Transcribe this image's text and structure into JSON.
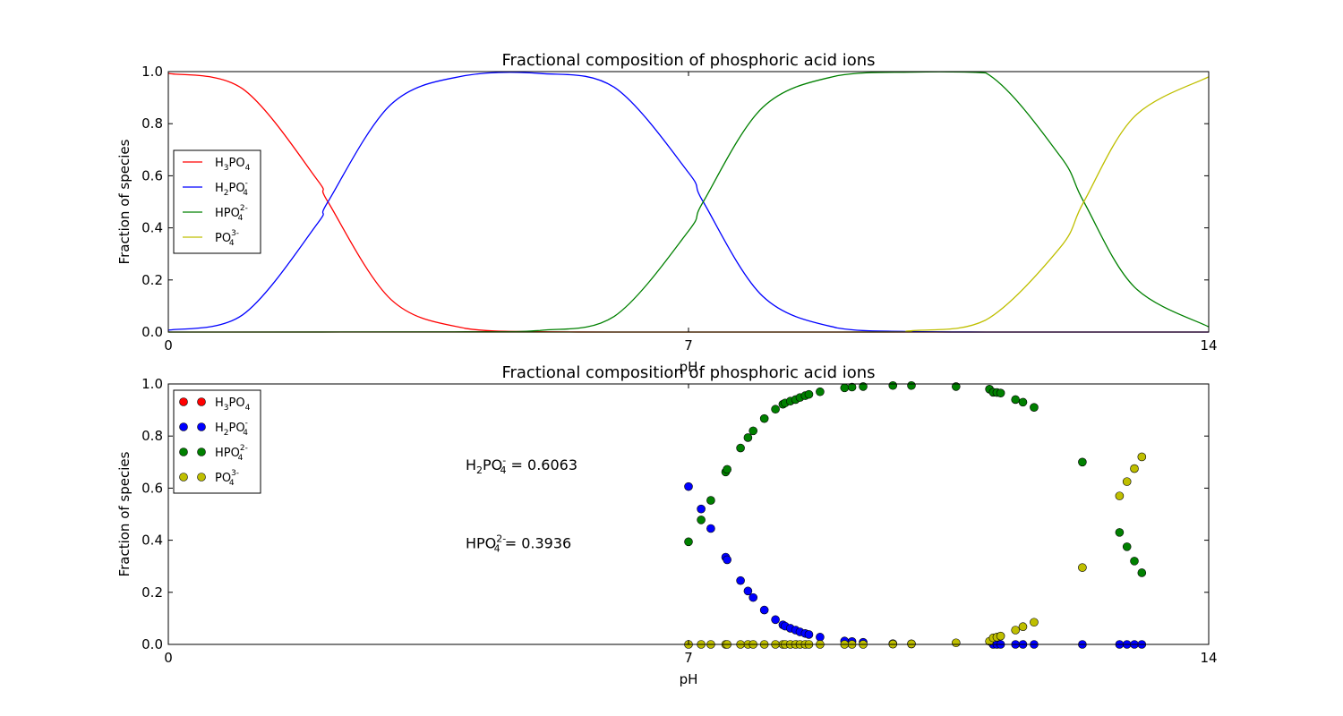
{
  "chart_data": [
    {
      "type": "line",
      "title": "Fractional composition of phosphoric acid ions",
      "xlabel": "pH",
      "ylabel": "Fraction of species",
      "xlim": [
        0,
        14
      ],
      "ylim": [
        0,
        1
      ],
      "xticks": [
        "0",
        "7",
        "14"
      ],
      "yticks": [
        "0.0",
        "0.2",
        "0.4",
        "0.6",
        "0.8",
        "1.0"
      ],
      "grid": false,
      "legend_position": "center-left",
      "pKa": [
        2.148,
        7.198,
        12.319
      ],
      "series": [
        {
          "name": "H3PO4",
          "legend": {
            "base": "H",
            "sub1": "3",
            "mid": "PO",
            "sub2": "4",
            "sup": ""
          },
          "color": "#ff0000",
          "x": [
            0,
            1,
            2,
            2.148,
            3,
            4,
            5,
            6,
            7,
            8,
            9,
            10,
            11,
            12,
            13,
            14
          ],
          "y": [
            0.993,
            0.934,
            0.586,
            0.5,
            0.124,
            0.014,
            0.001,
            0.0,
            0.0,
            0.0,
            0.0,
            0.0,
            0.0,
            0.0,
            0.0,
            0.0
          ]
        },
        {
          "name": "H2PO4-",
          "legend": {
            "base": "H",
            "sub1": "2",
            "mid": "PO",
            "sub2": "4",
            "sup": "-"
          },
          "color": "#0000ff",
          "x": [
            0,
            1,
            2,
            2.148,
            3,
            4,
            5,
            6,
            7,
            7.198,
            8,
            9,
            10,
            11,
            12,
            13,
            14
          ],
          "y": [
            0.007,
            0.066,
            0.414,
            0.5,
            0.875,
            0.985,
            0.993,
            0.94,
            0.612,
            0.5,
            0.137,
            0.016,
            0.002,
            0.0,
            0.0,
            0.0,
            0.0
          ]
        },
        {
          "name": "HPO4 2-",
          "legend": {
            "base": "",
            "sub1": "",
            "mid": "HPO",
            "sub2": "4",
            "sup": "2-"
          },
          "color": "#008000",
          "x": [
            0,
            4,
            5,
            6,
            7,
            7.198,
            8,
            9,
            10,
            11,
            12,
            12.319,
            13,
            14
          ],
          "y": [
            0.0,
            0.001,
            0.006,
            0.06,
            0.388,
            0.5,
            0.863,
            0.984,
            0.998,
            0.995,
            0.676,
            0.5,
            0.173,
            0.02
          ]
        },
        {
          "name": "PO4 3-",
          "legend": {
            "base": "",
            "sub1": "",
            "mid": "PO",
            "sub2": "4",
            "sup": "3-"
          },
          "color": "#bfbf00",
          "x": [
            0,
            9,
            10,
            11,
            12,
            12.319,
            13,
            14
          ],
          "y": [
            0.0,
            0.0,
            0.005,
            0.046,
            0.324,
            0.5,
            0.827,
            0.98
          ]
        }
      ]
    },
    {
      "type": "scatter",
      "title": "Fractional composition of phosphoric acid ions",
      "xlabel": "pH",
      "ylabel": "Fraction of species",
      "xlim": [
        0,
        14
      ],
      "ylim": [
        0,
        1
      ],
      "xticks": [
        "0",
        "7",
        "14"
      ],
      "yticks": [
        "0.0",
        "0.2",
        "0.4",
        "0.6",
        "0.8",
        "1.0"
      ],
      "grid": false,
      "legend_position": "top-left",
      "series": [
        {
          "name": "H3PO4",
          "legend": {
            "base": "H",
            "sub1": "3",
            "mid": "PO",
            "sub2": "4",
            "sup": ""
          },
          "color": "#ff0000",
          "points": []
        },
        {
          "name": "H2PO4-",
          "legend": {
            "base": "H",
            "sub1": "2",
            "mid": "PO",
            "sub2": "4",
            "sup": "-"
          },
          "color": "#0000ff",
          "points": [
            [
              7.0,
              0.606
            ],
            [
              7.17,
              0.52
            ],
            [
              7.3,
              0.445
            ],
            [
              7.5,
              0.335
            ],
            [
              7.52,
              0.325
            ],
            [
              7.7,
              0.245
            ],
            [
              7.8,
              0.205
            ],
            [
              7.87,
              0.18
            ],
            [
              8.02,
              0.132
            ],
            [
              8.17,
              0.095
            ],
            [
              8.27,
              0.075
            ],
            [
              8.3,
              0.07
            ],
            [
              8.37,
              0.062
            ],
            [
              8.44,
              0.055
            ],
            [
              8.5,
              0.048
            ],
            [
              8.57,
              0.042
            ],
            [
              8.62,
              0.038
            ],
            [
              8.77,
              0.028
            ],
            [
              9.1,
              0.013
            ],
            [
              9.2,
              0.011
            ],
            [
              9.35,
              0.008
            ],
            [
              9.75,
              0.003
            ],
            [
              10.0,
              0.002
            ],
            [
              11.1,
              0.0
            ],
            [
              11.15,
              0.0
            ],
            [
              11.2,
              0.0
            ],
            [
              11.4,
              0.0
            ],
            [
              11.5,
              0.0
            ],
            [
              11.65,
              0.0
            ],
            [
              12.3,
              0.0
            ],
            [
              12.8,
              0.0
            ],
            [
              12.9,
              0.0
            ],
            [
              13.0,
              0.0
            ],
            [
              13.1,
              0.0
            ]
          ]
        },
        {
          "name": "HPO4 2-",
          "legend": {
            "base": "",
            "sub1": "",
            "mid": "HPO",
            "sub2": "4",
            "sup": "2-"
          },
          "color": "#008000",
          "points": [
            [
              7.0,
              0.394
            ],
            [
              7.17,
              0.478
            ],
            [
              7.3,
              0.553
            ],
            [
              7.5,
              0.662
            ],
            [
              7.52,
              0.672
            ],
            [
              7.7,
              0.754
            ],
            [
              7.8,
              0.794
            ],
            [
              7.87,
              0.82
            ],
            [
              8.02,
              0.867
            ],
            [
              8.17,
              0.903
            ],
            [
              8.27,
              0.922
            ],
            [
              8.3,
              0.927
            ],
            [
              8.37,
              0.934
            ],
            [
              8.44,
              0.94
            ],
            [
              8.5,
              0.948
            ],
            [
              8.57,
              0.955
            ],
            [
              8.62,
              0.96
            ],
            [
              8.77,
              0.97
            ],
            [
              9.1,
              0.985
            ],
            [
              9.2,
              0.988
            ],
            [
              9.35,
              0.99
            ],
            [
              9.75,
              0.994
            ],
            [
              10.0,
              0.994
            ],
            [
              10.6,
              0.99
            ],
            [
              11.05,
              0.98
            ],
            [
              11.1,
              0.968
            ],
            [
              11.15,
              0.967
            ],
            [
              11.2,
              0.965
            ],
            [
              11.4,
              0.94
            ],
            [
              11.5,
              0.93
            ],
            [
              11.65,
              0.91
            ],
            [
              12.3,
              0.7
            ],
            [
              12.8,
              0.43
            ],
            [
              12.9,
              0.375
            ],
            [
              13.0,
              0.32
            ],
            [
              13.1,
              0.275
            ]
          ]
        },
        {
          "name": "PO4 3-",
          "legend": {
            "base": "",
            "sub1": "",
            "mid": "PO",
            "sub2": "4",
            "sup": "3-"
          },
          "color": "#bfbf00",
          "points": [
            [
              7.0,
              0.0
            ],
            [
              7.17,
              0.0
            ],
            [
              7.3,
              0.0
            ],
            [
              7.5,
              0.0
            ],
            [
              7.52,
              0.0
            ],
            [
              7.7,
              0.0
            ],
            [
              7.8,
              0.0
            ],
            [
              7.87,
              0.0
            ],
            [
              8.02,
              0.0
            ],
            [
              8.17,
              0.0
            ],
            [
              8.27,
              0.0
            ],
            [
              8.3,
              0.0
            ],
            [
              8.37,
              0.0
            ],
            [
              8.44,
              0.0
            ],
            [
              8.5,
              0.0
            ],
            [
              8.57,
              0.0
            ],
            [
              8.62,
              0.0
            ],
            [
              8.77,
              0.0
            ],
            [
              9.1,
              0.0
            ],
            [
              9.2,
              0.0
            ],
            [
              9.35,
              0.0
            ],
            [
              9.75,
              0.001
            ],
            [
              10.0,
              0.002
            ],
            [
              10.6,
              0.006
            ],
            [
              11.05,
              0.012
            ],
            [
              11.1,
              0.025
            ],
            [
              11.15,
              0.028
            ],
            [
              11.2,
              0.032
            ],
            [
              11.4,
              0.055
            ],
            [
              11.5,
              0.068
            ],
            [
              11.65,
              0.085
            ],
            [
              12.3,
              0.295
            ],
            [
              12.8,
              0.57
            ],
            [
              12.9,
              0.625
            ],
            [
              13.0,
              0.675
            ],
            [
              13.1,
              0.72
            ]
          ]
        }
      ],
      "annotations": [
        {
          "species": {
            "base": "H",
            "sub1": "2",
            "mid": "PO",
            "sub2": "4",
            "sup": "-"
          },
          "value": "= 0.6063",
          "x": 4.0,
          "y": 0.67
        },
        {
          "species": {
            "base": "",
            "sub1": "",
            "mid": "HPO",
            "sub2": "4",
            "sup": "2-"
          },
          "value": "= 0.3936",
          "x": 4.0,
          "y": 0.37
        }
      ]
    }
  ]
}
